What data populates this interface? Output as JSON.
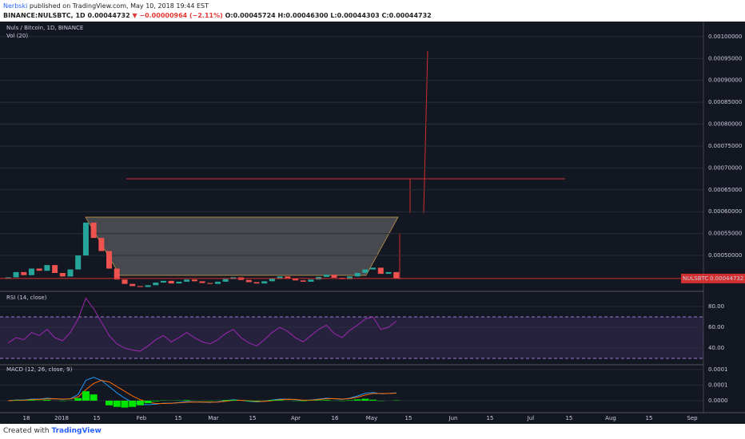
{
  "header": {
    "author": "Nerbski",
    "published": "published on TradingView.com, May 10, 2018 19:44 EST",
    "symbol": "BINANCE:NULSBTC, 1D",
    "last": "0.00044732",
    "change": "▼ −0.00000964 (−2.11%)",
    "ohlc": "O:0.00045724 H:0.00046300 L:0.00044303 C:0.00044732"
  },
  "footer": {
    "created": "Created with",
    "brand": "TradingView"
  },
  "chart_data": [
    {
      "type": "candlestick",
      "title": "Nuls / Bitcoin, 1D, BINANCE",
      "subtitle": "Vol (20)",
      "up_color": "#26a69a",
      "down_color": "#ef5350",
      "closes": [
        0.00045,
        0.000462,
        0.000455,
        0.00047,
        0.000465,
        0.000478,
        0.00046,
        0.000452,
        0.000468,
        0.0005,
        0.000575,
        0.00054,
        0.00051,
        0.00047,
        0.000445,
        0.000435,
        0.00043,
        0.000428,
        0.000432,
        0.000438,
        0.000442,
        0.000436,
        0.00044,
        0.000445,
        0.000441,
        0.000437,
        0.000435,
        0.00044,
        0.000446,
        0.00045,
        0.000444,
        0.000439,
        0.000436,
        0.000441,
        0.000447,
        0.000452,
        0.000448,
        0.000443,
        0.00044,
        0.000445,
        0.000451,
        0.000456,
        0.000449,
        0.000446,
        0.000452,
        0.00046,
        0.000468,
        0.000472,
        0.000458,
        0.000462,
        0.00044732
      ],
      "ylim": [
        0.000418,
        0.001029
      ],
      "yticks": [
        {
          "value": 0.001,
          "label": "0.00100000"
        },
        {
          "value": 0.00095,
          "label": "0.00095000"
        },
        {
          "value": 0.0009,
          "label": "0.00090000"
        },
        {
          "value": 0.00085,
          "label": "0.00085000"
        },
        {
          "value": 0.0008,
          "label": "0.00080000"
        },
        {
          "value": 0.00075,
          "label": "0.00075000"
        },
        {
          "value": 0.0007,
          "label": "0.00070000"
        },
        {
          "value": 0.00065,
          "label": "0.00065000"
        },
        {
          "value": 0.0006,
          "label": "0.00060000"
        },
        {
          "value": 0.00055,
          "label": "0.00055000"
        },
        {
          "value": 0.0005,
          "label": "0.00050000"
        }
      ],
      "price_label": {
        "name": "NULSBTC",
        "value": 0.00044732,
        "label": "0.00044732"
      },
      "categories": [
        "18",
        "2018",
        "15",
        "Feb",
        "15",
        "Mar",
        "15",
        "Apr",
        "16",
        "May",
        "15",
        "Jun",
        "15",
        "Jul",
        "15",
        "Aug",
        "15",
        "Sep"
      ],
      "grid": true
    },
    {
      "type": "line",
      "title": "RSI (14, close)",
      "color": "#9c27b0",
      "bands": [
        30,
        70
      ],
      "values": [
        45,
        50,
        48,
        55,
        52,
        58,
        50,
        47,
        55,
        68,
        88,
        78,
        65,
        52,
        44,
        40,
        38,
        37,
        42,
        48,
        52,
        46,
        50,
        55,
        50,
        46,
        44,
        48,
        54,
        58,
        50,
        45,
        42,
        48,
        55,
        60,
        56,
        50,
        46,
        52,
        58,
        62,
        54,
        50,
        57,
        62,
        68,
        70,
        58,
        60,
        66
      ],
      "ylim": [
        25.4,
        93.1
      ],
      "yticks": [
        {
          "value": 80,
          "label": "80.00"
        },
        {
          "value": 60,
          "label": "60.00"
        },
        {
          "value": 40,
          "label": "40.00"
        }
      ]
    },
    {
      "type": "macd",
      "title": "MACD (12, 26, close, 9)",
      "series": [
        {
          "name": "MACD",
          "color": "#2196f3",
          "values": [
            0,
            2e-06,
            2e-06,
            5e-06,
            5e-06,
            8e-06,
            6e-06,
            4e-06,
            6e-06,
            2e-05,
            6.5e-05,
            7.5e-05,
            6.5e-05,
            4.5e-05,
            2.5e-05,
            8e-06,
            -5e-06,
            -1.2e-05,
            -1.3e-05,
            -1.1e-05,
            -8e-06,
            -8e-06,
            -6e-06,
            -3e-06,
            -4e-06,
            -5e-06,
            -6e-06,
            -4e-06,
            0,
            3e-06,
            1e-06,
            -2e-06,
            -4e-06,
            -2e-06,
            2e-06,
            5e-06,
            5e-06,
            3e-06,
            0,
            2e-06,
            5e-06,
            8e-06,
            6e-06,
            4e-06,
            8e-06,
            1.5e-05,
            2.4e-05,
            2.6e-05,
            2.2e-05,
            2.3e-05,
            2.5e-05
          ]
        },
        {
          "name": "Signal",
          "color": "#ff6d00",
          "values": [
            0,
            1e-06,
            1.5e-06,
            3e-06,
            4e-06,
            5.5e-06,
            6e-06,
            5e-06,
            5.5e-06,
            1.2e-05,
            3.5e-05,
            5.5e-05,
            6.5e-05,
            6e-05,
            4.5e-05,
            3e-05,
            1.5e-05,
            3e-06,
            -5e-06,
            -9e-06,
            -9e-06,
            -8.5e-06,
            -7e-06,
            -5e-06,
            -4.5e-06,
            -4.5e-06,
            -5e-06,
            -4.5e-06,
            -2e-06,
            1e-06,
            1e-06,
            -5e-07,
            -2.5e-06,
            -2.5e-06,
            0,
            3e-06,
            4.5e-06,
            4e-06,
            1.5e-06,
            1.5e-06,
            3.5e-06,
            6e-06,
            6.5e-06,
            5e-06,
            6.5e-06,
            1.1e-05,
            1.8e-05,
            2.3e-05,
            2.3e-05,
            2.3e-05,
            2.4e-05
          ]
        },
        {
          "name": "Histogram",
          "color": "#00e600",
          "values": [
            0,
            1e-06,
            5e-07,
            2e-06,
            1e-06,
            2.5e-06,
            0,
            -1e-06,
            5e-07,
            8e-06,
            3e-05,
            2e-05,
            0,
            -1.5e-05,
            -2e-05,
            -2.2e-05,
            -2e-05,
            -1.5e-05,
            -8e-06,
            -2e-06,
            1e-06,
            5e-07,
            1e-06,
            2e-06,
            5e-07,
            -5e-07,
            -1e-06,
            5e-07,
            2e-06,
            2e-06,
            0,
            -1.5e-06,
            -1.5e-06,
            5e-07,
            2e-06,
            2e-06,
            5e-07,
            -1e-06,
            -1.5e-06,
            5e-07,
            1.5e-06,
            2e-06,
            -5e-07,
            -1e-06,
            1.5e-06,
            4e-06,
            6e-06,
            3e-06,
            -1e-06,
            0,
            1e-06
          ]
        }
      ],
      "ylim": [
        -3.85e-05,
        0.000115
      ],
      "yticks": [
        {
          "value": 0.0001,
          "label": "0.0001"
        },
        {
          "value": 5e-05,
          "label": "0.0001"
        },
        {
          "value": 0,
          "label": "0.0000"
        }
      ]
    }
  ]
}
